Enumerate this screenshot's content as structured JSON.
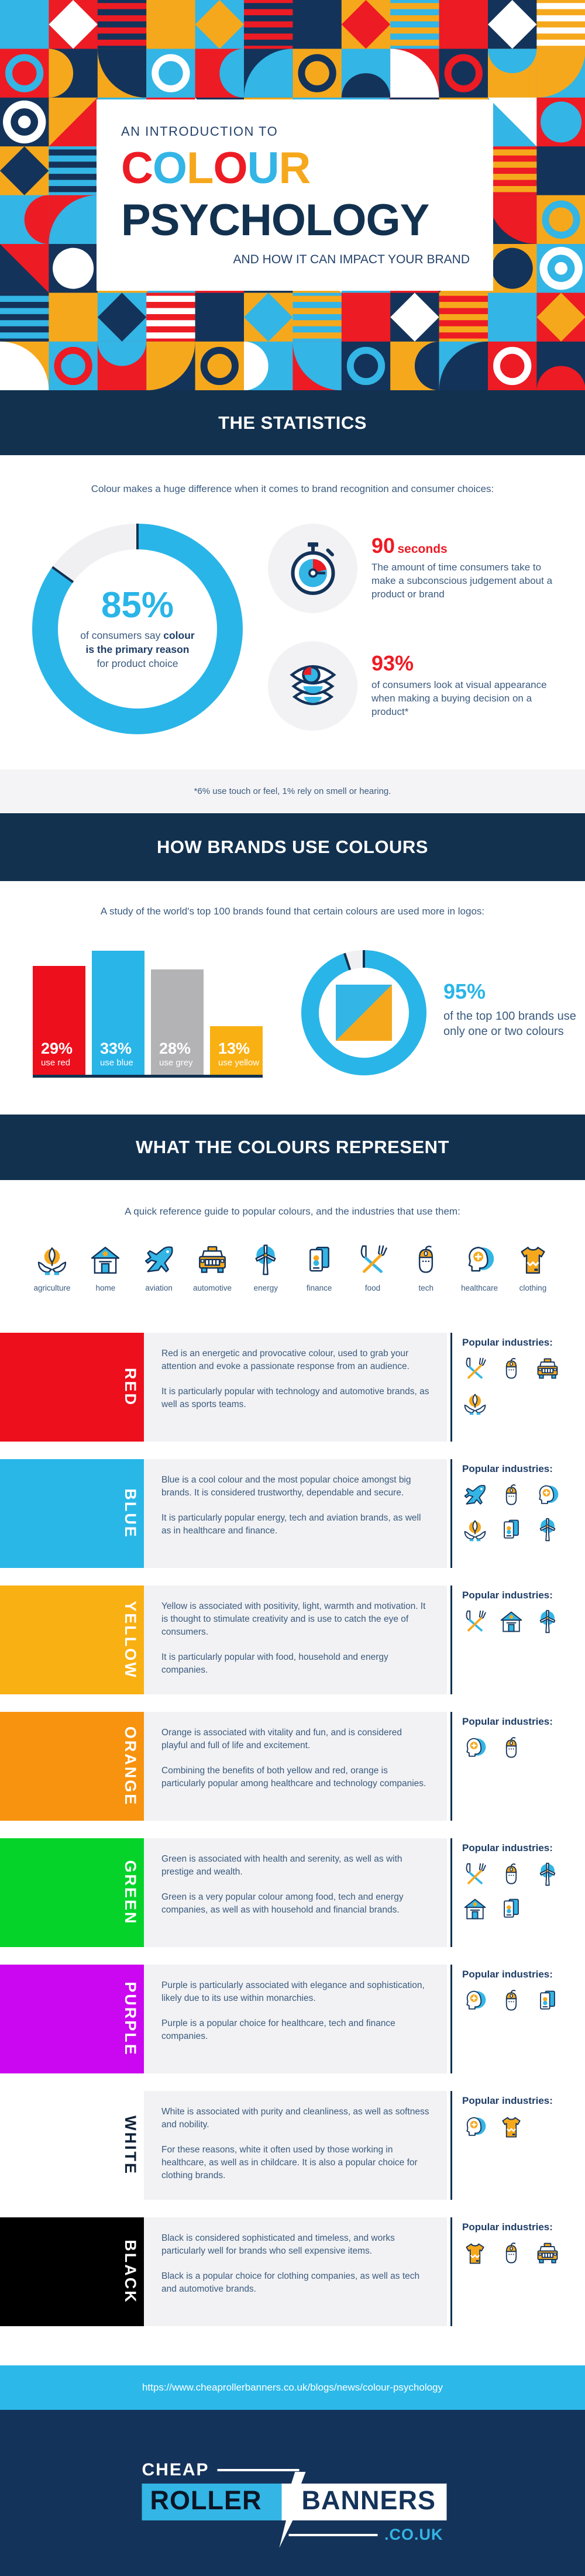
{
  "colors": {
    "navy": "#12314F",
    "body_text": "#3A5A7E",
    "light_blue": "#29B5E8",
    "red": "#ED1B24",
    "yellow": "#F9B013",
    "orange": "#F7930E",
    "green": "#05D32A",
    "purple": "#CB06F0",
    "panel_grey": "#F2F2F4",
    "bar_grey": "#B3B3B6"
  },
  "header": {
    "kicker": "AN INTRODUCTION TO",
    "colour_letters": [
      [
        "C",
        "#ED1B24"
      ],
      [
        "O",
        "#33B5E5"
      ],
      [
        "L",
        "#F6A81C"
      ],
      [
        "O",
        "#ED1B24"
      ],
      [
        "U",
        "#33B5E5"
      ],
      [
        "R",
        "#F6A81C"
      ]
    ],
    "title_line2": "PSYCHOLOGY",
    "subtitle": "AND HOW IT CAN IMPACT YOUR BRAND"
  },
  "sections": {
    "statistics": {
      "banner": "THE STATISTICS",
      "intro": "Colour makes a huge difference when it comes to brand recognition and consumer choices:",
      "donut": {
        "value_label": "85%",
        "line1": "of consumers say ",
        "bold1": "colour",
        "line2": "is the primary reason",
        "line3": "for product choice"
      },
      "stats": [
        {
          "icon": "stopwatch-icon",
          "headline": "90",
          "headline_suffix": "seconds",
          "body": "The amount of time consumers take to make a subconscious judgement about a product or brand"
        },
        {
          "icon": "eyes-icon",
          "headline": "93%",
          "headline_suffix": "",
          "body": "of consumers look at visual appearance when making a buying decision on a product*"
        }
      ],
      "footnote": "*6% use touch or feel, 1% rely on smell or hearing."
    },
    "brands": {
      "banner": "HOW BRANDS USE COLOURS",
      "intro": "A study of the world's top 100 brands found that certain colours are used more in logos:",
      "donut_value_label": "95%",
      "donut_body": "of the top 100 brands use only one or two colours"
    },
    "represent": {
      "banner": "WHAT THE COLOURS REPRESENT",
      "intro": "A quick reference guide to popular colours, and the industries that use them:"
    }
  },
  "chart_data": [
    {
      "type": "pie",
      "title": "85% of consumers say colour is the primary reason for product choice",
      "labels": [
        "colour is the primary reason",
        "other"
      ],
      "values": [
        85,
        15
      ],
      "center_label": "85%",
      "colors": [
        "#29B5E8",
        "#F0F0F2"
      ]
    },
    {
      "type": "bar",
      "title": "Colours used in logos of the world's top 100 brands",
      "categories": [
        "use red",
        "use blue",
        "use grey",
        "use yellow"
      ],
      "values": [
        29,
        33,
        28,
        13
      ],
      "unit": "%",
      "colors": [
        "#ED0F1C",
        "#29B5E8",
        "#B3B3B6",
        "#F9B013"
      ],
      "ylim": [
        0,
        33
      ]
    },
    {
      "type": "pie",
      "title": "95% of the top 100 brands use only one or two colours",
      "labels": [
        "use only one or two colours",
        "use more colours"
      ],
      "values": [
        95,
        5
      ],
      "center_label": "95%",
      "colors": [
        "#29B5E8",
        "#F0F0F2"
      ]
    }
  ],
  "legend": {
    "items": [
      {
        "id": "agriculture",
        "label": "agriculture"
      },
      {
        "id": "home",
        "label": "home"
      },
      {
        "id": "aviation",
        "label": "aviation"
      },
      {
        "id": "automotive",
        "label": "automotive"
      },
      {
        "id": "energy",
        "label": "energy"
      },
      {
        "id": "finance",
        "label": "finance"
      },
      {
        "id": "food",
        "label": "food"
      },
      {
        "id": "tech",
        "label": "tech"
      },
      {
        "id": "healthcare",
        "label": "healthcare"
      },
      {
        "id": "clothing",
        "label": "clothing"
      }
    ]
  },
  "colour_rows": [
    {
      "name": "RED",
      "hex": "#ED0F1C",
      "label_color": "#FFFFFF",
      "paragraphs": [
        "Red is an energetic and provocative colour, used to grab your attention and evoke a passionate response from an audience.",
        "It is particularly popular with technology and automotive brands, as well as sports teams."
      ],
      "popular_title": "Popular industries:",
      "industries": [
        "food",
        "tech",
        "automotive",
        "agriculture"
      ]
    },
    {
      "name": "BLUE",
      "hex": "#29B7E8",
      "label_color": "#FFFFFF",
      "paragraphs": [
        "Blue is a cool colour and the most popular choice amongst big brands. It is considered trustworthy, dependable and secure.",
        "It is particularly popular energy, tech and aviation brands, as well as in healthcare and finance."
      ],
      "popular_title": "Popular industries:",
      "industries": [
        "aviation",
        "tech",
        "healthcare",
        "agriculture",
        "finance",
        "energy"
      ]
    },
    {
      "name": "YELLOW",
      "hex": "#F9B013",
      "label_color": "#FFFFFF",
      "paragraphs": [
        "Yellow is associated with positivity, light, warmth and motivation. It is thought to stimulate creativity and is use to catch the eye of consumers.",
        "It is particularly popular with food, household and energy companies."
      ],
      "popular_title": "Popular industries:",
      "industries": [
        "food",
        "home",
        "energy"
      ]
    },
    {
      "name": "ORANGE",
      "hex": "#F7930E",
      "label_color": "#FFFFFF",
      "paragraphs": [
        "Orange is associated with vitality and fun, and is considered playful and full of life and excitement.",
        "Combining the benefits of both yellow and red, orange is particularly popular among healthcare and technology companies."
      ],
      "popular_title": "Popular industries:",
      "industries": [
        "healthcare",
        "tech"
      ]
    },
    {
      "name": "GREEN",
      "hex": "#05D32A",
      "label_color": "#FFFFFF",
      "paragraphs": [
        "Green is associated with health and serenity, as well as with prestige and wealth.",
        "Green is a very popular colour among food, tech and energy companies, as well as with household and financial brands."
      ],
      "popular_title": "Popular industries:",
      "industries": [
        "food",
        "tech",
        "energy",
        "home",
        "finance"
      ]
    },
    {
      "name": "PURPLE",
      "hex": "#CB06F0",
      "label_color": "#FFFFFF",
      "paragraphs": [
        "Purple is particularly associated with elegance and sophistication, likely due to its use within monarchies.",
        "Purple is a popular choice for healthcare, tech and finance companies."
      ],
      "popular_title": "Popular industries:",
      "industries": [
        "healthcare",
        "tech",
        "finance"
      ]
    },
    {
      "name": "WHITE",
      "hex": "#FFFFFF",
      "label_color": "#10223A",
      "paragraphs": [
        "White is associated with purity and cleanliness, as well as softness and nobility.",
        "For these reasons, white it often used by those working in healthcare, as well as in childcare. It is also a popular choice for clothing brands."
      ],
      "popular_title": "Popular industries:",
      "industries": [
        "healthcare",
        "clothing"
      ]
    },
    {
      "name": "BLACK",
      "hex": "#000000",
      "label_color": "#FFFFFF",
      "paragraphs": [
        "Black is considered sophisticated and timeless, and works particularly well for brands who sell expensive items.",
        "Black is a popular choice for clothing companies, as well as tech and automotive brands."
      ],
      "popular_title": "Popular industries:",
      "industries": [
        "clothing",
        "tech",
        "automotive"
      ]
    }
  ],
  "footer": {
    "url": "https://www.cheaprollerbanners.co.uk/blogs/news/colour-psychology",
    "logo": {
      "cheap": "CHEAP",
      "roller": "ROLLER",
      "banners": "BANNERS",
      "tld": ".CO.UK"
    }
  }
}
